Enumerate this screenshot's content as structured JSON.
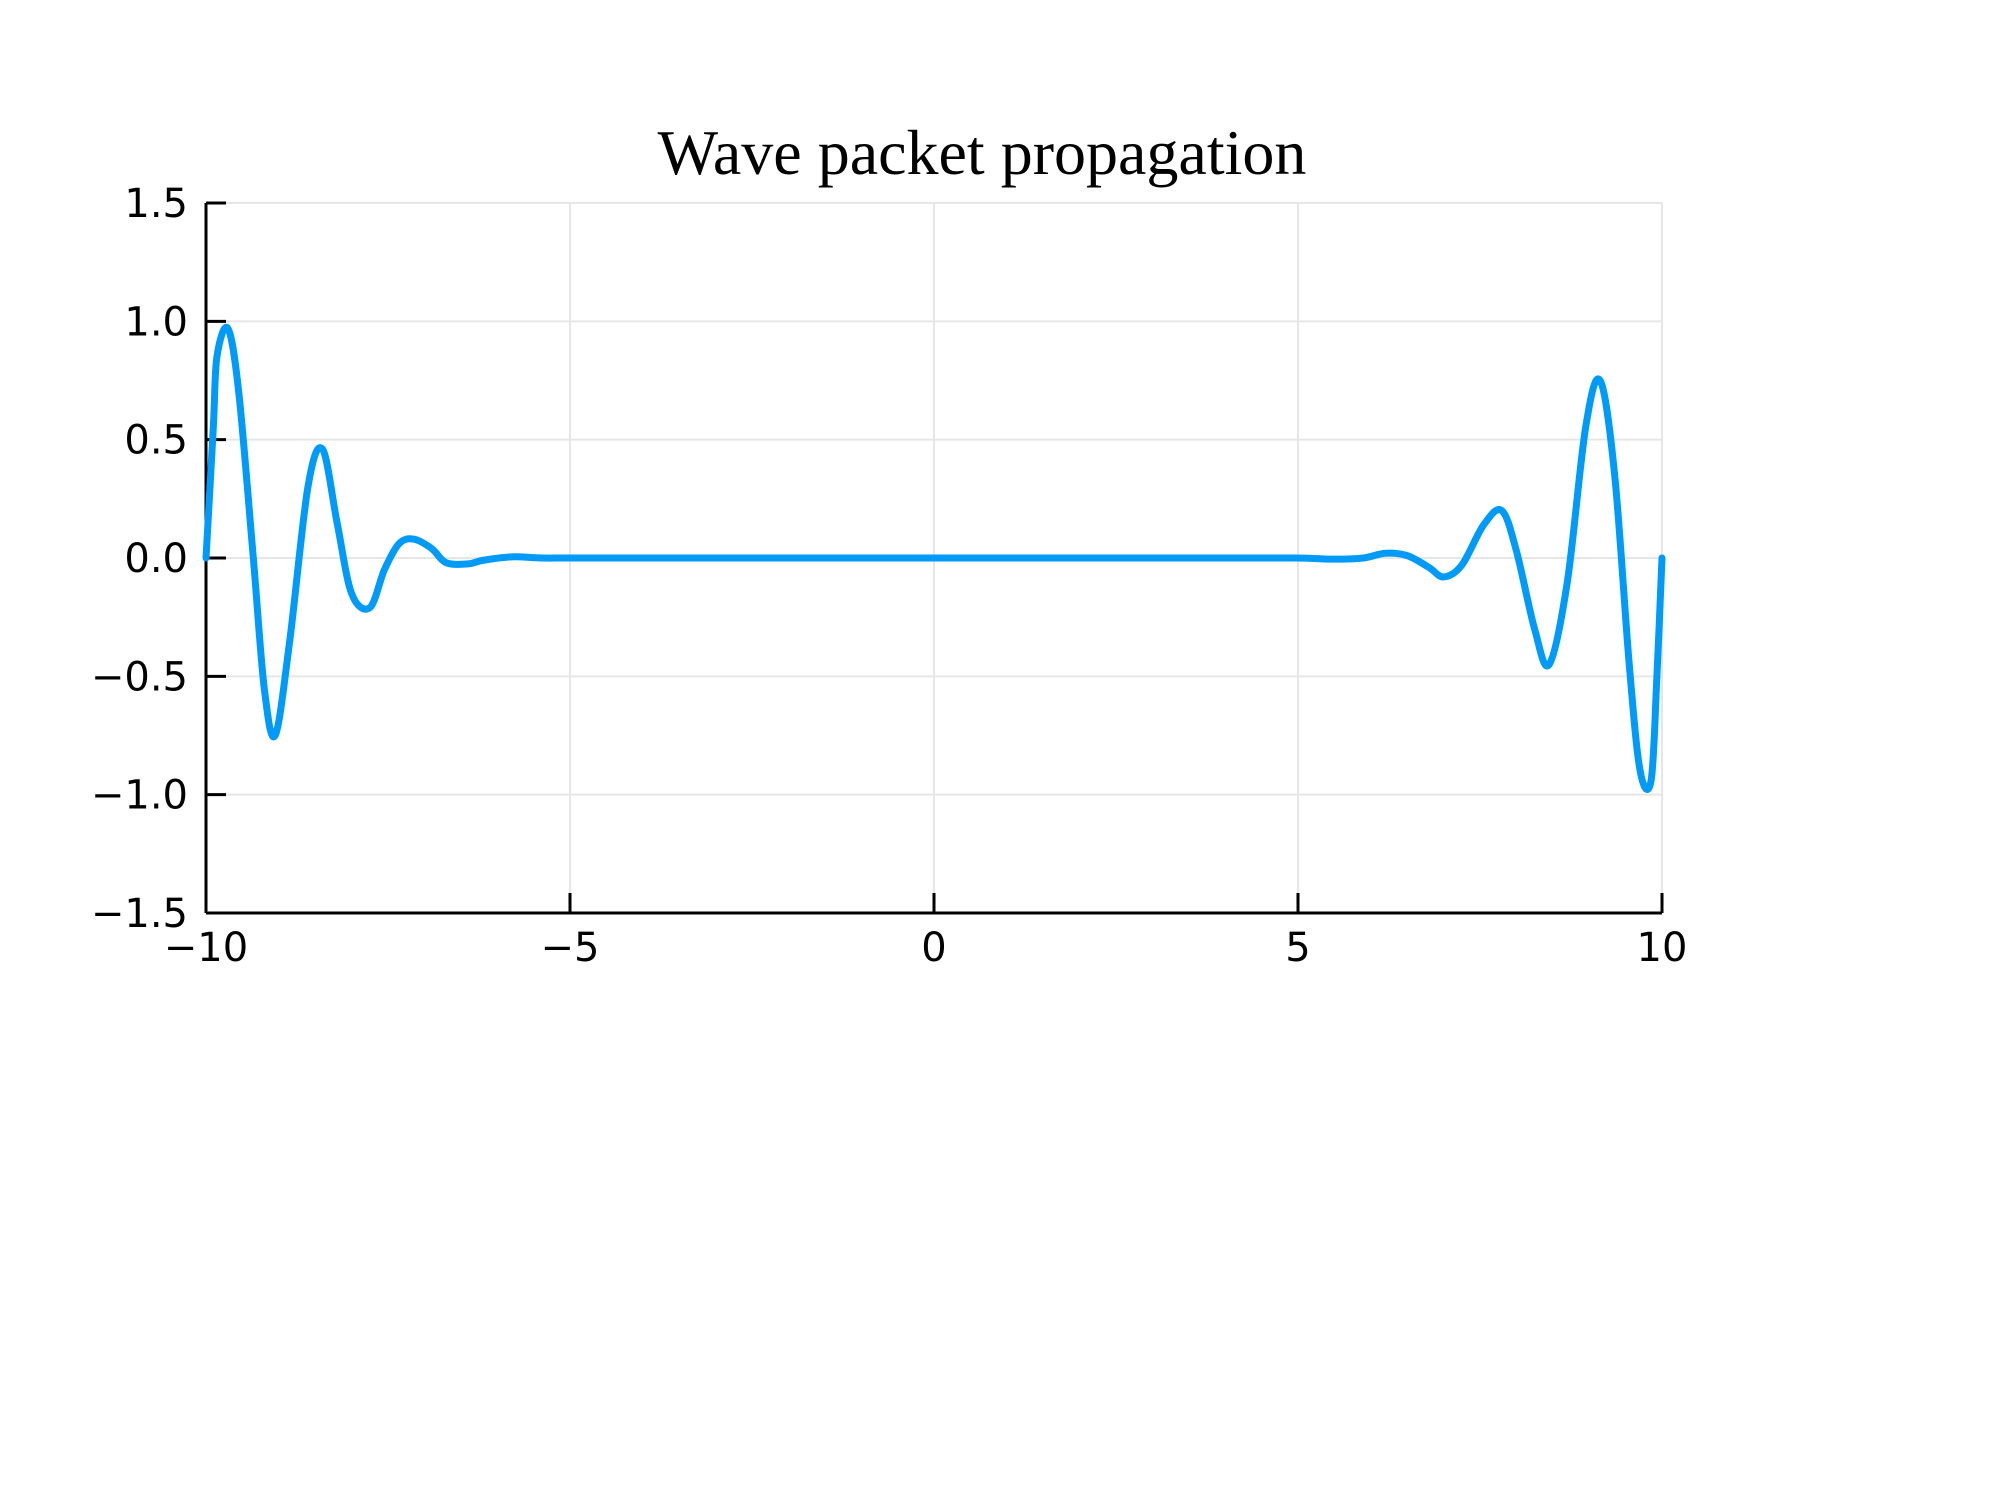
{
  "chart_data": {
    "type": "line",
    "title": "Wave packet propagation",
    "xlabel": "",
    "ylabel": "",
    "xlim": [
      -10,
      10
    ],
    "ylim": [
      -1.5,
      1.5
    ],
    "xticks": [
      -10,
      -5,
      0,
      5,
      10
    ],
    "xtick_labels": [
      "−10",
      "−5",
      "0",
      "5",
      "10"
    ],
    "yticks": [
      1.5,
      1.0,
      0.5,
      0.0,
      -0.5,
      -1.0,
      -1.5
    ],
    "ytick_labels": [
      "1.5",
      "1.0",
      "0.5",
      "0.0",
      "−0.5",
      "−1.0",
      "−1.5"
    ],
    "grid": true,
    "legend": "none",
    "series": [
      {
        "color": "#009af9",
        "x": [
          -10.0,
          -9.9,
          -9.85,
          -9.7,
          -9.55,
          -9.35,
          -9.2,
          -9.05,
          -8.85,
          -8.6,
          -8.4,
          -8.2,
          -8.0,
          -7.75,
          -7.55,
          -7.35,
          -7.15,
          -6.9,
          -6.7,
          -6.4,
          -6.2,
          -5.8,
          -5.4,
          -5.0,
          -4.0,
          -2.0,
          0.0,
          2.0,
          4.0,
          5.0,
          5.5,
          5.9,
          6.2,
          6.5,
          6.8,
          7.0,
          7.25,
          7.55,
          7.8,
          8.0,
          8.25,
          8.45,
          8.7,
          8.95,
          9.15,
          9.35,
          9.55,
          9.7,
          9.85,
          9.93,
          10.0
        ],
        "y": [
          0.0,
          0.55,
          0.85,
          0.97,
          0.7,
          0.0,
          -0.55,
          -0.75,
          -0.35,
          0.3,
          0.46,
          0.15,
          -0.15,
          -0.21,
          -0.05,
          0.06,
          0.08,
          0.04,
          -0.02,
          -0.025,
          -0.01,
          0.005,
          0.0,
          0.0,
          0.0,
          0.0,
          0.0,
          0.0,
          0.0,
          0.0,
          -0.005,
          0.0,
          0.02,
          0.01,
          -0.04,
          -0.08,
          -0.03,
          0.14,
          0.2,
          0.03,
          -0.3,
          -0.45,
          -0.1,
          0.55,
          0.75,
          0.35,
          -0.45,
          -0.9,
          -0.94,
          -0.5,
          0.0
        ]
      }
    ]
  }
}
